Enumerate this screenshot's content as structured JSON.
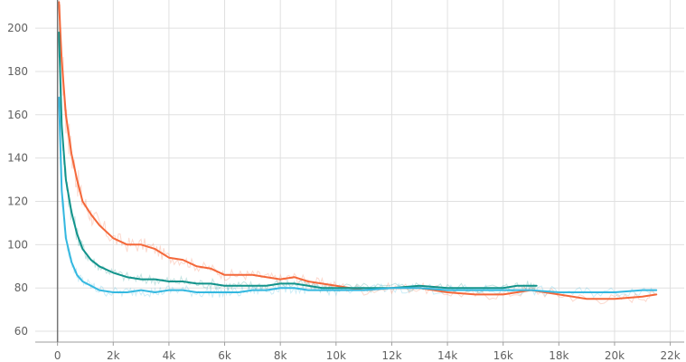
{
  "colors": {
    "background": "#ffffff",
    "grid": "#e0e0e0",
    "axis": "#9e9e9e",
    "tick_text": "#616161"
  },
  "chart_data": {
    "type": "line",
    "title": "",
    "xlabel": "",
    "ylabel": "",
    "xlim": [
      -800,
      22500
    ],
    "ylim": [
      55,
      213
    ],
    "grid": true,
    "legend": "none",
    "x_ticks": [
      0,
      2000,
      4000,
      6000,
      8000,
      10000,
      12000,
      14000,
      16000,
      18000,
      20000,
      22000
    ],
    "x_tick_labels": [
      "0",
      "2k",
      "4k",
      "6k",
      "8k",
      "10k",
      "12k",
      "14k",
      "16k",
      "18k",
      "20k",
      "22k"
    ],
    "y_ticks": [
      60,
      80,
      100,
      120,
      140,
      160,
      180,
      200
    ],
    "y_tick_labels": [
      "60",
      "80",
      "100",
      "120",
      "140",
      "160",
      "180",
      "200"
    ],
    "series": [
      {
        "color": "#f4683a",
        "x": [
          50,
          150,
          300,
          500,
          700,
          900,
          1200,
          1500,
          2000,
          2500,
          3000,
          3500,
          4000,
          4500,
          5000,
          5500,
          6000,
          6500,
          7000,
          7500,
          8000,
          8500,
          9000,
          9500,
          10000,
          11000,
          12000,
          13000,
          14000,
          15000,
          16000,
          17000,
          18000,
          19000,
          20000,
          21000,
          21500
        ],
        "y": [
          212,
          185,
          160,
          142,
          130,
          120,
          114,
          109,
          103,
          100,
          100,
          98,
          94,
          93,
          90,
          89,
          86,
          86,
          86,
          85,
          84,
          85,
          83,
          82,
          81,
          79,
          80,
          80,
          78,
          77,
          77,
          79,
          77,
          75,
          75,
          76,
          77
        ]
      },
      {
        "color": "#12938b",
        "x": [
          50,
          150,
          300,
          500,
          700,
          900,
          1200,
          1500,
          2000,
          2500,
          3000,
          3500,
          4000,
          4500,
          5000,
          5500,
          6000,
          6500,
          7000,
          7500,
          8000,
          8500,
          9000,
          9500,
          10000,
          11000,
          12000,
          13000,
          14000,
          15000,
          16000,
          16500,
          17000,
          17200
        ],
        "y": [
          198,
          155,
          130,
          115,
          105,
          98,
          93,
          90,
          87,
          85,
          84,
          84,
          83,
          83,
          82,
          82,
          81,
          81,
          81,
          81,
          82,
          82,
          81,
          80,
          80,
          80,
          80,
          81,
          80,
          80,
          80,
          81,
          81,
          81
        ]
      },
      {
        "color": "#34b8e0",
        "x": [
          50,
          150,
          300,
          500,
          700,
          900,
          1200,
          1500,
          2000,
          2500,
          3000,
          3500,
          4000,
          4500,
          5000,
          5500,
          6000,
          6500,
          7000,
          7500,
          8000,
          8500,
          9000,
          9500,
          10000,
          11000,
          12000,
          13000,
          14000,
          15000,
          16000,
          17000,
          18000,
          19000,
          20000,
          21000,
          21500
        ],
        "y": [
          168,
          125,
          103,
          92,
          86,
          83,
          81,
          79,
          78,
          78,
          79,
          78,
          79,
          79,
          78,
          78,
          78,
          78,
          79,
          79,
          80,
          80,
          79,
          79,
          79,
          79,
          80,
          80,
          79,
          79,
          79,
          79,
          78,
          78,
          78,
          79,
          79
        ]
      }
    ]
  }
}
